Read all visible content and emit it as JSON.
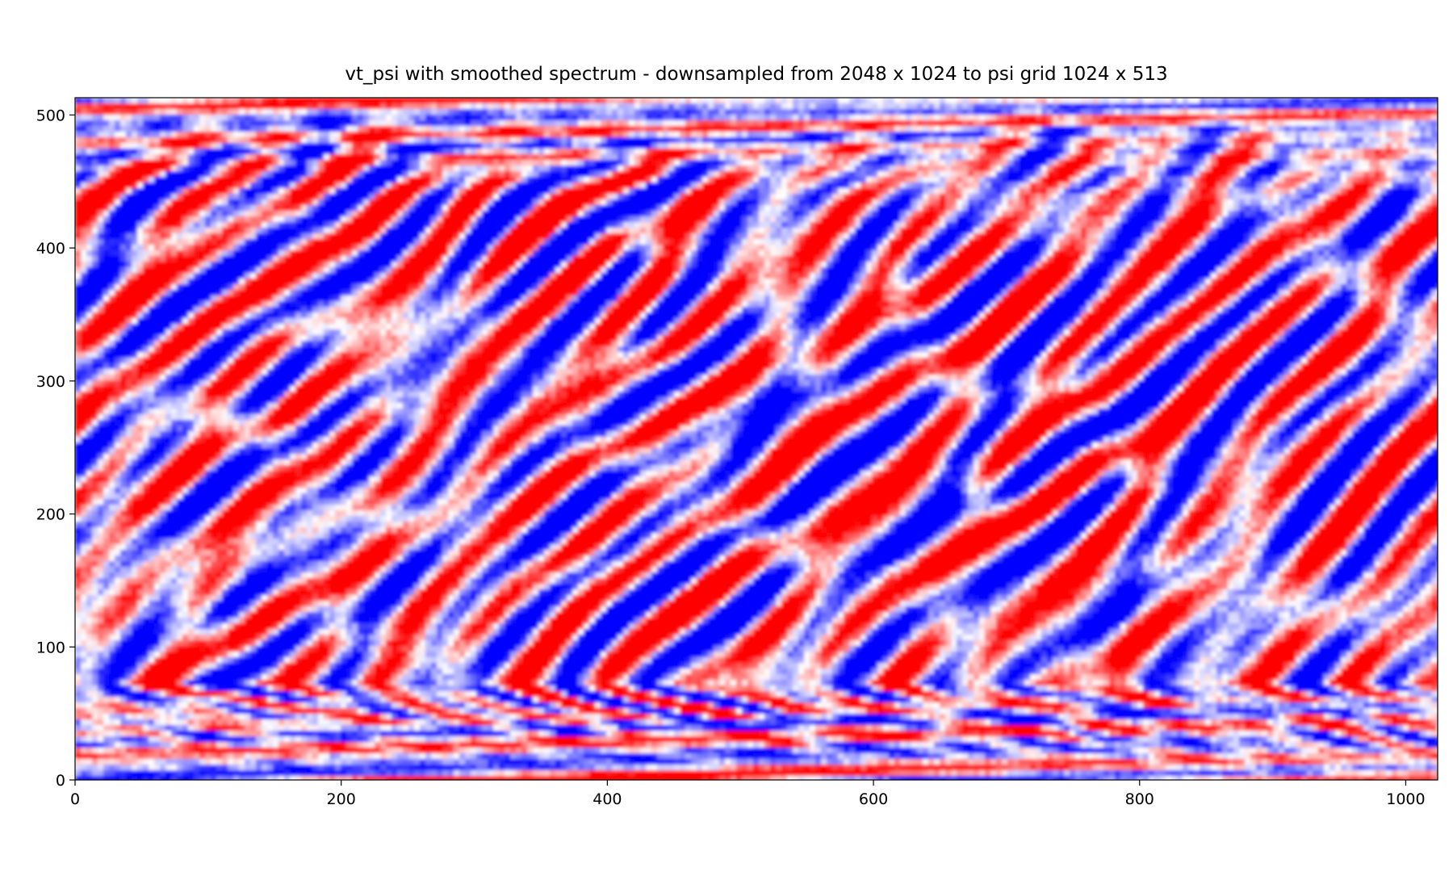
{
  "chart_data": {
    "type": "heatmap",
    "title": "vt_psi with smoothed spectrum - downsampled from 2048 x 1024 to psi grid 1024 x 513",
    "xlabel": "",
    "ylabel": "",
    "xlim": [
      0,
      1024
    ],
    "ylim": [
      0,
      513
    ],
    "grid_shape": [
      513,
      1024
    ],
    "colormap": "bwr",
    "colormap_colors": [
      "#0000ff",
      "#ffffff",
      "#ff0000"
    ],
    "x_ticks": [
      0,
      200,
      400,
      600,
      800,
      1000
    ],
    "y_ticks": [
      0,
      100,
      200,
      300,
      400,
      500
    ],
    "x_tick_labels": [
      "0",
      "200",
      "400",
      "600",
      "800",
      "1000"
    ],
    "y_tick_labels": [
      "0",
      "100",
      "200",
      "300",
      "400",
      "500"
    ],
    "grid": false,
    "colorbar": false
  }
}
